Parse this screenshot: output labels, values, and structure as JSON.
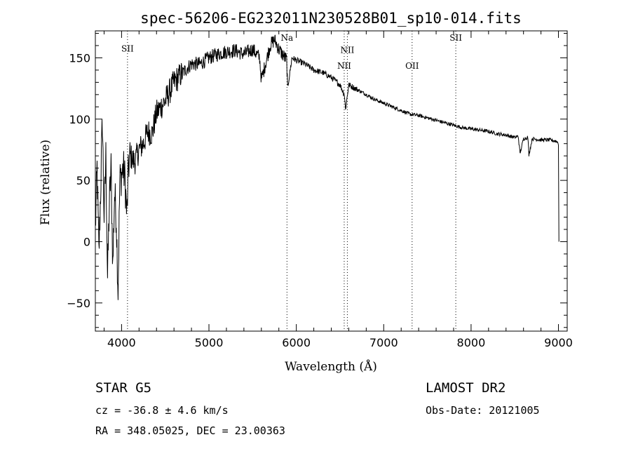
{
  "chart_data": {
    "type": "line",
    "title": "spec-56206-EG232011N230528B01_sp10-014.fits",
    "xlabel": "Wavelength (Å)",
    "ylabel": "Flux (relative)",
    "xlim": [
      3700,
      9100
    ],
    "ylim": [
      -73,
      172
    ],
    "xticks": [
      4000,
      5000,
      6000,
      7000,
      8000,
      9000
    ],
    "xtick_labels": [
      "4000",
      "5000",
      "6000",
      "7000",
      "8000",
      "9000"
    ],
    "yticks": [
      -50,
      0,
      50,
      100,
      150
    ],
    "ytick_labels": [
      "−50",
      "0",
      "50",
      "100",
      "150"
    ],
    "lines": [
      {
        "label": "SII",
        "wavelength": 4068,
        "label_flux": 155
      },
      {
        "label": "Na",
        "wavelength": 5893,
        "label_flux": 164
      },
      {
        "label": "NII",
        "wavelength": 6548,
        "label_flux": 141
      },
      {
        "label": "NII",
        "wavelength": 6584,
        "label_flux": 154
      },
      {
        "label": "OII",
        "wavelength": 7325,
        "label_flux": 141
      },
      {
        "label": "SII",
        "wavelength": 7825,
        "label_flux": 164
      }
    ],
    "series": [
      {
        "name": "flux",
        "x": [
          3700,
          3720,
          3740,
          3760,
          3780,
          3800,
          3820,
          3840,
          3860,
          3880,
          3900,
          3920,
          3940,
          3960,
          3980,
          4000,
          4020,
          4040,
          4060,
          4080,
          4100,
          4150,
          4200,
          4250,
          4300,
          4350,
          4400,
          4500,
          4600,
          4700,
          4800,
          4900,
          5000,
          5100,
          5200,
          5300,
          5400,
          5500,
          5580,
          5600,
          5700,
          5750,
          5800,
          5890,
          5900,
          5950,
          6000,
          6100,
          6200,
          6300,
          6400,
          6500,
          6550,
          6563,
          6600,
          6700,
          6800,
          6900,
          7000,
          7100,
          7200,
          7300,
          7400,
          7500,
          7600,
          7700,
          7800,
          7900,
          8000,
          8100,
          8200,
          8300,
          8400,
          8450,
          8500,
          8540,
          8560,
          8600,
          8650,
          8662,
          8700,
          8800,
          8900,
          8980,
          9000,
          9005
        ],
        "y": [
          10,
          60,
          -10,
          40,
          100,
          20,
          70,
          -30,
          30,
          60,
          -20,
          40,
          20,
          -40,
          50,
          55,
          60,
          50,
          20,
          62,
          70,
          65,
          75,
          80,
          90,
          88,
          105,
          115,
          130,
          138,
          145,
          145,
          150,
          153,
          155,
          156,
          153,
          157,
          150,
          132,
          160,
          165,
          157,
          148,
          125,
          150,
          148,
          145,
          140,
          138,
          134,
          128,
          120,
          108,
          128,
          124,
          120,
          116,
          113,
          110,
          107,
          104,
          103,
          101,
          99,
          97,
          95,
          93,
          92,
          91,
          90,
          88,
          87,
          86,
          85,
          86,
          72,
          84,
          85,
          71,
          84,
          83,
          83,
          82,
          80,
          0
        ]
      }
    ]
  },
  "info": {
    "line1_left": "STAR    G5",
    "line1_right": "LAMOST DR2",
    "line2_left": "cz = -36.8 ± 4.6 km/s",
    "line2_right": "Obs-Date: 20121005",
    "line3_left": "RA = 348.05025, DEC =  23.00363"
  }
}
